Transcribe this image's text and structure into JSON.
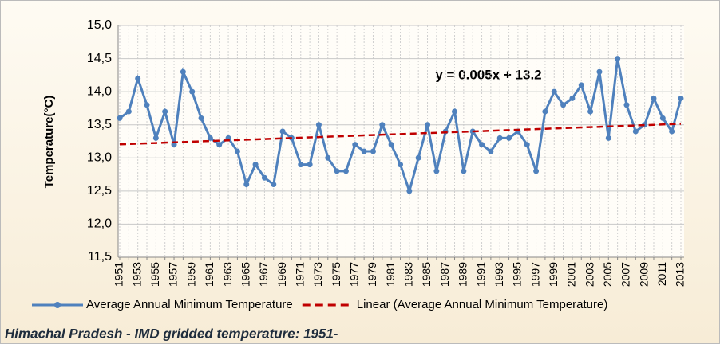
{
  "chart_data": {
    "type": "line",
    "y_label": "Temperature(°C)",
    "annotation": "y = 0.005x + 13.2",
    "caption": "Himachal Pradesh - IMD gridded temperature: 1951-",
    "categories": [
      "1951",
      null,
      "1953",
      null,
      "1955",
      null,
      "1957",
      null,
      "1959",
      null,
      "1961",
      null,
      "1963",
      null,
      "1965",
      null,
      "1967",
      null,
      "1969",
      null,
      "1971",
      null,
      "1973",
      null,
      "1975",
      null,
      "1977",
      null,
      "1979",
      null,
      "1981",
      null,
      "1983",
      null,
      "1985",
      null,
      "1987",
      null,
      "1989",
      null,
      "1991",
      null,
      "1993",
      null,
      "1995",
      null,
      "1997",
      null,
      "1999",
      null,
      "2001",
      null,
      "2003",
      null,
      "2005",
      null,
      "2007",
      null,
      "2009",
      null,
      "2011",
      null,
      "2013"
    ],
    "series": [
      {
        "name": "Average Annual Minimum Temperature",
        "color": "#4f81bd",
        "style": "solid",
        "markers": true,
        "values": [
          13.6,
          13.7,
          14.2,
          13.8,
          13.3,
          13.7,
          13.2,
          14.3,
          14.0,
          13.6,
          13.3,
          13.2,
          13.3,
          13.1,
          12.6,
          12.9,
          12.7,
          12.6,
          13.4,
          13.3,
          12.9,
          12.9,
          13.5,
          13.0,
          12.8,
          12.8,
          13.2,
          13.1,
          13.1,
          13.5,
          13.2,
          12.9,
          12.5,
          13.0,
          13.5,
          12.8,
          13.4,
          13.7,
          12.8,
          13.4,
          13.2,
          13.1,
          13.3,
          13.3,
          13.4,
          13.2,
          12.8,
          13.7,
          14.0,
          13.8,
          13.9,
          14.1,
          13.7,
          14.3,
          13.3,
          14.5,
          13.8,
          13.4,
          13.5,
          13.9,
          13.6,
          13.4,
          13.9
        ]
      },
      {
        "name": "Linear (Average Annual Minimum Temperature)",
        "color": "#c00000",
        "style": "dashed",
        "markers": false,
        "values": [
          13.205,
          13.21,
          13.215,
          13.22,
          13.225,
          13.23,
          13.235,
          13.24,
          13.245,
          13.25,
          13.255,
          13.26,
          13.265,
          13.27,
          13.275,
          13.28,
          13.285,
          13.29,
          13.295,
          13.3,
          13.305,
          13.31,
          13.315,
          13.32,
          13.325,
          13.33,
          13.335,
          13.34,
          13.345,
          13.35,
          13.355,
          13.36,
          13.365,
          13.37,
          13.375,
          13.38,
          13.385,
          13.39,
          13.395,
          13.4,
          13.405,
          13.41,
          13.415,
          13.42,
          13.425,
          13.43,
          13.435,
          13.44,
          13.445,
          13.45,
          13.455,
          13.46,
          13.465,
          13.47,
          13.475,
          13.48,
          13.485,
          13.49,
          13.495,
          13.5,
          13.505,
          13.51,
          13.515
        ]
      }
    ],
    "ylim": [
      11.5,
      15.0
    ],
    "yticks": [
      {
        "value": 11.5,
        "label": "11,5"
      },
      {
        "value": 12.0,
        "label": "12,0"
      },
      {
        "value": 12.5,
        "label": "12,5"
      },
      {
        "value": 13.0,
        "label": "13,0"
      },
      {
        "value": 13.5,
        "label": "13,5"
      },
      {
        "value": 14.0,
        "label": "14,0"
      },
      {
        "value": 14.5,
        "label": "14,5"
      },
      {
        "value": 15.0,
        "label": "15,0"
      }
    ],
    "grid": true
  }
}
